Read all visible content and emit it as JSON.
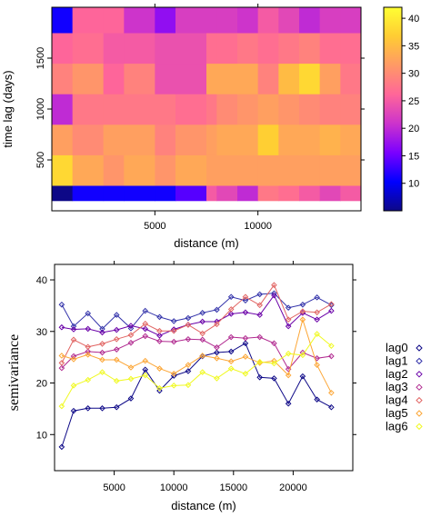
{
  "chart_data": [
    {
      "type": "heatmap",
      "xlabel": "distance (m)",
      "ylabel": "time lag (days)",
      "xlim": [
        0,
        15000
      ],
      "ylim": [
        0,
        2000
      ],
      "x_ticks": [
        5000,
        10000
      ],
      "y_ticks": [
        500,
        1000,
        1500
      ],
      "x_edges": [
        0,
        1000,
        2500,
        3500,
        5000,
        6000,
        7500,
        8000,
        9000,
        10000,
        11000,
        12000,
        13000,
        14000,
        15000
      ],
      "y_edges": [
        100,
        250,
        550,
        850,
        1150,
        1450,
        1750,
        2000
      ],
      "color_scale": {
        "min": 5,
        "max": 42,
        "ticks": [
          10,
          15,
          20,
          25,
          30,
          35,
          40
        ],
        "colors": [
          "#0d0887",
          "#0000ff",
          "#7b00ff",
          "#cc33cc",
          "#ff6699",
          "#ff9966",
          "#ffcc33",
          "#ffff33"
        ]
      },
      "values": [
        [
          5,
          11,
          11,
          11,
          11,
          14,
          25,
          23,
          20,
          28,
          27,
          25,
          23,
          25
        ],
        [
          38,
          33,
          31,
          33,
          31,
          33,
          32,
          32,
          32,
          32,
          32,
          32,
          32,
          32
        ],
        [
          32,
          30,
          32,
          32,
          29,
          31,
          32,
          33,
          33,
          37,
          33,
          33,
          34,
          33
        ],
        [
          20,
          28,
          28,
          28,
          28,
          27,
          28,
          30,
          31,
          32,
          31,
          30,
          29,
          29
        ],
        [
          29,
          31,
          26,
          29,
          24,
          24,
          33,
          33,
          33,
          29,
          35,
          38,
          32,
          28
        ],
        [
          26,
          27,
          25,
          25,
          24,
          24,
          27,
          27,
          28,
          27,
          28,
          29,
          27,
          27
        ],
        [
          11,
          26,
          26,
          21,
          17,
          22,
          22,
          22,
          21,
          25,
          23,
          20,
          22,
          22
        ]
      ]
    },
    {
      "type": "line",
      "xlabel": "distance (m)",
      "ylabel": "semivariance",
      "xlim": [
        0,
        25000
      ],
      "ylim": [
        3,
        43
      ],
      "x_ticks": [
        5000,
        10000,
        15000,
        20000
      ],
      "y_ticks": [
        10,
        20,
        30,
        40
      ],
      "x": [
        600,
        1600,
        2800,
        4000,
        5200,
        6400,
        7600,
        8800,
        10000,
        11200,
        12400,
        13600,
        14800,
        16000,
        17200,
        18400,
        19600,
        20800,
        22000,
        23200
      ],
      "series": [
        {
          "name": "lag0",
          "color": "#0d0887",
          "values": [
            7.6,
            14.6,
            15.1,
            15.1,
            15.3,
            17.0,
            22.6,
            18.5,
            21.4,
            22.3,
            25.2,
            25.9,
            26.1,
            27.7,
            21.1,
            20.9,
            16.0,
            21.3,
            16.8,
            15.3
          ]
        },
        {
          "name": "lag1",
          "color": "#3333aa",
          "values": [
            35.2,
            31.0,
            33.5,
            30.5,
            33.2,
            30.6,
            34.0,
            32.8,
            32.0,
            32.6,
            33.6,
            34.2,
            36.7,
            36.0,
            37.2,
            37.4,
            34.6,
            35.2,
            36.6,
            35.1
          ]
        },
        {
          "name": "lag2",
          "color": "#6a00a8",
          "values": [
            30.8,
            30.4,
            30.5,
            29.8,
            30.3,
            31.1,
            30.5,
            29.2,
            30.4,
            31.3,
            31.9,
            31.9,
            33.4,
            33.7,
            33.2,
            37.0,
            31.0,
            33.6,
            32.3,
            34.0
          ]
        },
        {
          "name": "lag3",
          "color": "#b12a90",
          "values": [
            22.9,
            25.2,
            26.1,
            25.9,
            26.5,
            27.8,
            29.1,
            28.1,
            28.0,
            28.5,
            28.4,
            26.9,
            28.9,
            28.7,
            28.9,
            27.7,
            22.7,
            25.9,
            24.8,
            25.2
          ]
        },
        {
          "name": "lag4",
          "color": "#e16462",
          "values": [
            23.9,
            28.4,
            27.0,
            27.6,
            28.5,
            29.3,
            31.5,
            30.1,
            30.1,
            31.3,
            29.6,
            31.4,
            34.3,
            36.7,
            35.1,
            39.0,
            32.3,
            33.9,
            33.7,
            35.3
          ]
        },
        {
          "name": "lag5",
          "color": "#fca636",
          "values": [
            25.3,
            24.6,
            25.5,
            24.5,
            24.5,
            23.0,
            24.3,
            22.8,
            21.8,
            23.5,
            25.3,
            24.8,
            24.2,
            25.1,
            23.9,
            24.3,
            21.5,
            32.3,
            23.5,
            18.1
          ]
        },
        {
          "name": "lag6",
          "color": "#f0f921",
          "values": [
            15.5,
            19.5,
            20.6,
            22.1,
            20.4,
            20.8,
            21.5,
            19.0,
            19.5,
            19.6,
            22.1,
            20.9,
            22.8,
            21.8,
            24.1,
            23.8,
            25.7,
            25.4,
            29.5,
            27.2
          ]
        }
      ]
    }
  ]
}
